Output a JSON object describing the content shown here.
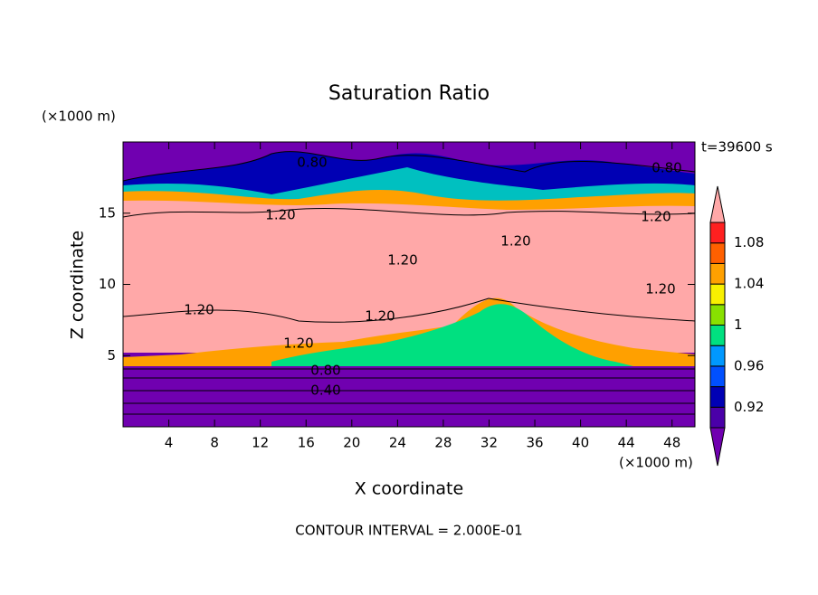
{
  "chart_data": {
    "type": "contour",
    "title": "Saturation Ratio",
    "x_label": "X coordinate",
    "y_label": "Z coordinate",
    "x_unit": "(×1000 m)",
    "y_unit": "(×1000 m)",
    "time_label": "t=39600 s",
    "footer": "CONTOUR INTERVAL = 2.000E-01",
    "xlim": [
      0,
      50
    ],
    "xticks": [
      4,
      8,
      12,
      16,
      20,
      24,
      28,
      32,
      36,
      40,
      44,
      48
    ],
    "ylim": [
      0,
      20
    ],
    "yticks": [
      5,
      10,
      15
    ],
    "colorbar": {
      "levels": [
        0.9,
        0.92,
        0.94,
        0.96,
        0.98,
        1.0,
        1.02,
        1.04,
        1.06,
        1.08,
        1.1
      ],
      "colors": [
        "#7000b0",
        "#4a00a8",
        "#0000b4",
        "#0050ff",
        "#0098ff",
        "#00e080",
        "#88e000",
        "#f8f000",
        "#ffa000",
        "#ff6000",
        "#ff2020",
        "#ffa8a8"
      ],
      "ticks": [
        0.92,
        0.96,
        1,
        1.04,
        1.08
      ]
    },
    "contour_labels": [
      "0.80",
      "0.80",
      "1.20",
      "1.20",
      "1.20",
      "1.20",
      "1.20",
      "1.20",
      "1.20",
      "1.20",
      "0.80",
      "0.40"
    ]
  }
}
